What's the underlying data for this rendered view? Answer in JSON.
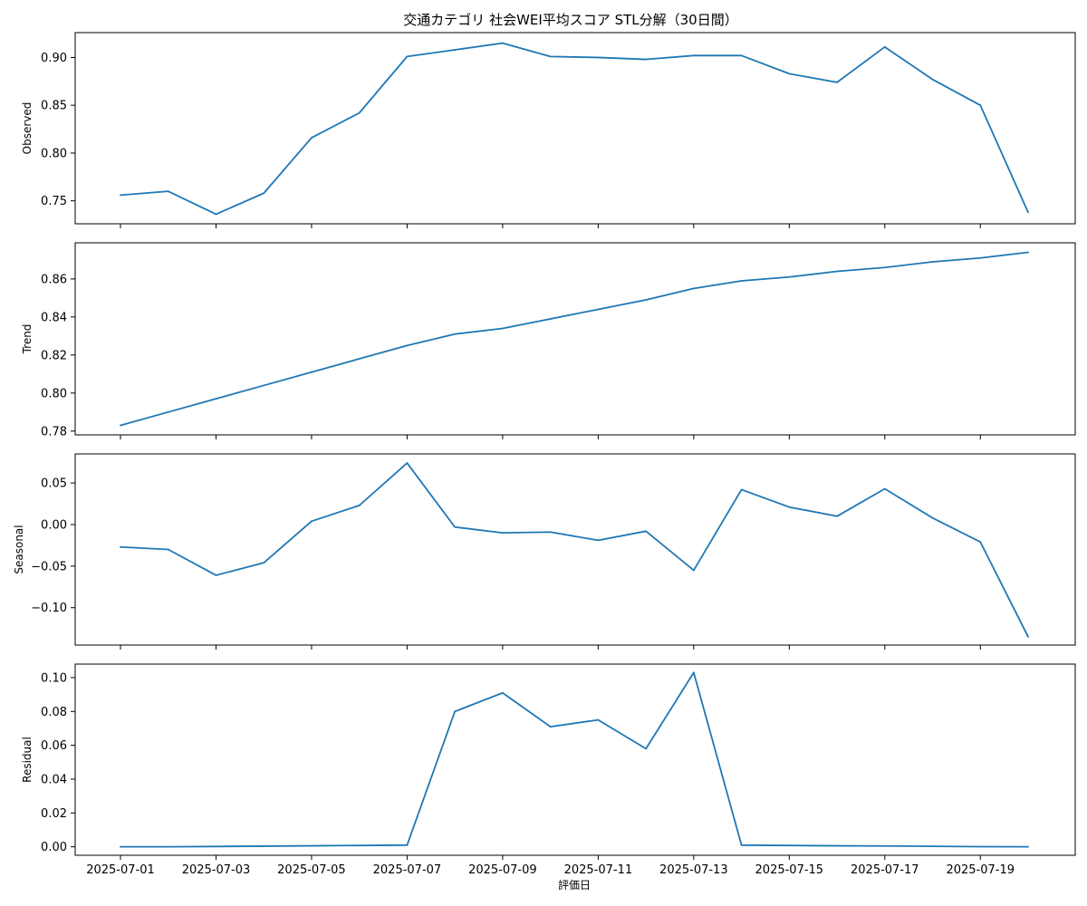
{
  "chart_data": {
    "type": "line",
    "title": "交通カテゴリ 社会WEI平均スコア STL分解（30日間）",
    "xlabel": "評価日",
    "line_color": "#1f77b4",
    "x": [
      "2025-07-01",
      "2025-07-02",
      "2025-07-03",
      "2025-07-04",
      "2025-07-05",
      "2025-07-06",
      "2025-07-07",
      "2025-07-08",
      "2025-07-09",
      "2025-07-10",
      "2025-07-11",
      "2025-07-12",
      "2025-07-13",
      "2025-07-14",
      "2025-07-15",
      "2025-07-16",
      "2025-07-17",
      "2025-07-18",
      "2025-07-19",
      "2025-07-20"
    ],
    "xticks": [
      "2025-07-01",
      "2025-07-03",
      "2025-07-05",
      "2025-07-07",
      "2025-07-09",
      "2025-07-11",
      "2025-07-13",
      "2025-07-15",
      "2025-07-17",
      "2025-07-19"
    ],
    "panels": [
      {
        "ylabel": "Observed",
        "ylim": [
          0.726,
          0.926
        ],
        "yticks": [
          0.75,
          0.8,
          0.85,
          0.9
        ],
        "yticklabels": [
          "0.75",
          "0.80",
          "0.85",
          "0.90"
        ],
        "values": [
          0.756,
          0.76,
          0.736,
          0.758,
          0.816,
          0.842,
          0.901,
          0.908,
          0.915,
          0.901,
          0.9,
          0.898,
          0.902,
          0.902,
          0.883,
          0.874,
          0.911,
          0.877,
          0.85,
          0.738
        ]
      },
      {
        "ylabel": "Trend",
        "ylim": [
          0.778,
          0.879
        ],
        "yticks": [
          0.78,
          0.8,
          0.82,
          0.84,
          0.86
        ],
        "yticklabels": [
          "0.78",
          "0.80",
          "0.82",
          "0.84",
          "0.86"
        ],
        "values": [
          0.783,
          0.79,
          0.797,
          0.804,
          0.811,
          0.818,
          0.825,
          0.831,
          0.834,
          0.839,
          0.844,
          0.849,
          0.855,
          0.859,
          0.861,
          0.864,
          0.866,
          0.869,
          0.871,
          0.874
        ]
      },
      {
        "ylabel": "Seasonal",
        "ylim": [
          -0.145,
          0.085
        ],
        "yticks": [
          -0.1,
          -0.05,
          0.0,
          0.05
        ],
        "yticklabels": [
          "−0.10",
          "−0.05",
          "0.00",
          "0.05"
        ],
        "values": [
          -0.027,
          -0.03,
          -0.061,
          -0.046,
          0.004,
          0.023,
          0.074,
          -0.003,
          -0.01,
          -0.009,
          -0.019,
          -0.008,
          -0.055,
          0.042,
          0.021,
          0.01,
          0.043,
          0.008,
          -0.021,
          -0.135
        ]
      },
      {
        "ylabel": "Residual",
        "ylim": [
          -0.005,
          0.108
        ],
        "yticks": [
          0.0,
          0.02,
          0.04,
          0.06,
          0.08,
          0.1
        ],
        "yticklabels": [
          "0.00",
          "0.02",
          "0.04",
          "0.06",
          "0.08",
          "0.10"
        ],
        "values": [
          0.0,
          0.0,
          0.0002,
          0.0004,
          0.0006,
          0.0008,
          0.001,
          0.08,
          0.091,
          0.071,
          0.075,
          0.058,
          0.103,
          0.001,
          0.0008,
          0.0006,
          0.0005,
          0.0003,
          0.0001,
          0.0
        ]
      }
    ]
  }
}
